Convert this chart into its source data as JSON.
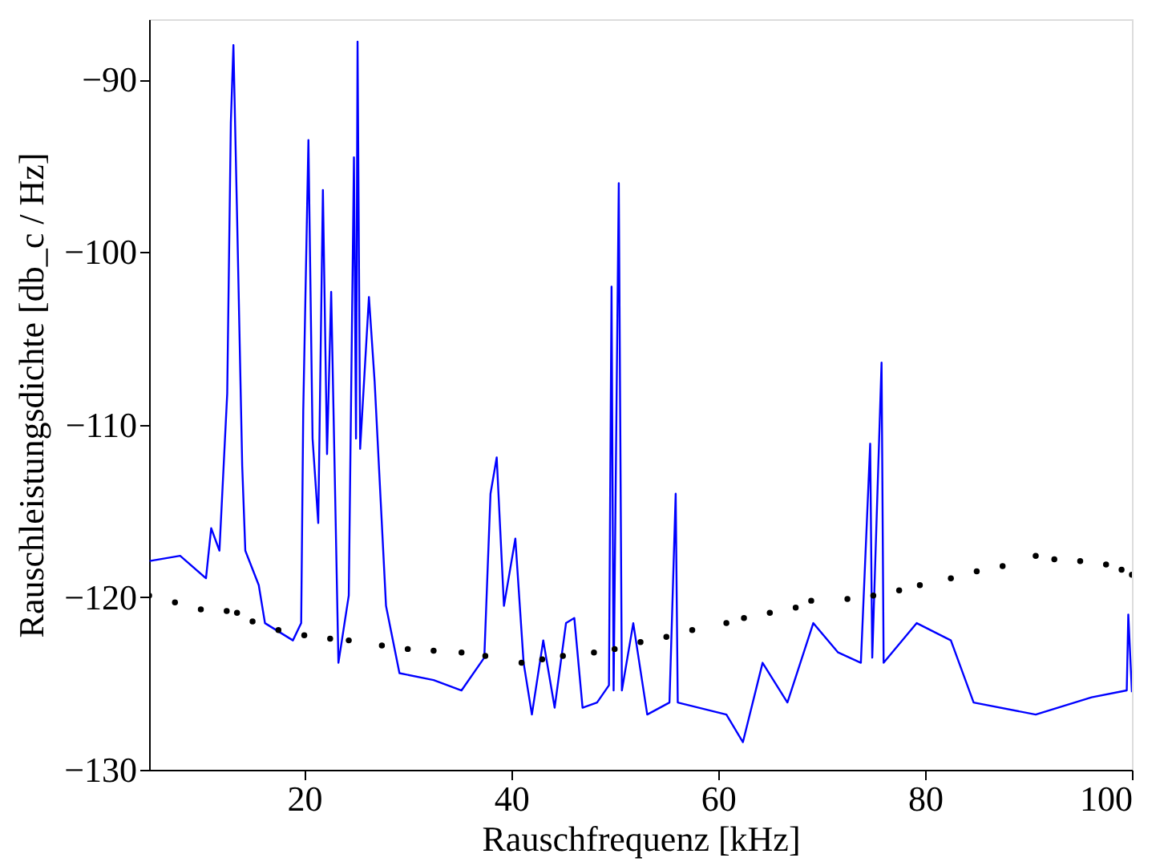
{
  "chart_data": {
    "type": "line",
    "xlabel": "Rauschfrequenz [kHz]",
    "ylabel": "Rauschleistungsdichte [db_c / Hz]",
    "xlim": [
      5,
      100
    ],
    "ylim": [
      -130,
      -86.5
    ],
    "xticks": [
      20,
      40,
      60,
      80,
      100
    ],
    "yticks": [
      {
        "value": -90,
        "label": "−90"
      },
      {
        "value": -100,
        "label": "−100"
      },
      {
        "value": -110,
        "label": "−110"
      },
      {
        "value": -120,
        "label": "−120"
      },
      {
        "value": -130,
        "label": "−130"
      }
    ],
    "grid": false,
    "line_style": "solid",
    "series": [
      {
        "type": "scatter",
        "marker": "circle",
        "color": "#000000",
        "x": [
          5,
          7.5,
          10,
          12.5,
          13.5,
          15,
          17.5,
          20,
          22.5,
          24.3,
          27.5,
          30,
          32.5,
          35.2,
          37.5,
          41,
          43,
          45,
          48,
          50,
          52.5,
          55,
          57.5,
          60.8,
          62.5,
          65,
          67.5,
          69,
          72.5,
          75,
          77.5,
          79.5,
          82.5,
          85,
          87.5,
          90.7,
          92.5,
          95,
          97.5,
          99,
          100
        ],
        "values": [
          -119.9,
          -120.3,
          -120.7,
          -120.8,
          -120.9,
          -121.4,
          -121.9,
          -122.2,
          -122.4,
          -122.5,
          -122.8,
          -123,
          -123.1,
          -123.2,
          -123.4,
          -123.8,
          -123.6,
          -123.4,
          -123.2,
          -123,
          -122.6,
          -122.3,
          -121.9,
          -121.5,
          -121.2,
          -120.9,
          -120.6,
          -120.2,
          -120.1,
          -119.9,
          -119.6,
          -119.3,
          -118.9,
          -118.5,
          -118.2,
          -117.6,
          -117.8,
          -117.9,
          -118.1,
          -118.4,
          -118.7
        ]
      },
      {
        "color": "#0000ff",
        "x": [
          5.05,
          8.0,
          10.5,
          11.0,
          11.8,
          12.55,
          12.9,
          13.15,
          13.5,
          14.0,
          14.3,
          15.6,
          16.2,
          18.9,
          19.7,
          19.9,
          20.4,
          20.8,
          21.35,
          21.8,
          22.2,
          22.6,
          23.3,
          24.3,
          24.8,
          25.0,
          25.15,
          25.4,
          26.25,
          26.8,
          27.9,
          29.2,
          32.5,
          35.2,
          37.4,
          38.0,
          38.6,
          39.3,
          40.4,
          41.2,
          42.0,
          43.1,
          44.2,
          45.3,
          46.1,
          46.9,
          48.3,
          49.45,
          49.7,
          49.9,
          50.4,
          50.7,
          51.8,
          53.15,
          55.3,
          55.9,
          56.1,
          60.8,
          62.4,
          64.3,
          66.7,
          69.2,
          71.6,
          73.8,
          74.7,
          74.9,
          75.8,
          76.0,
          79.2,
          82.5,
          84.7,
          90.7,
          96.1,
          99.5,
          99.65,
          100
        ],
        "values": [
          -117.9,
          -117.6,
          -118.9,
          -116.0,
          -117.3,
          -108.2,
          -92.5,
          -88.0,
          -97.8,
          -112.4,
          -117.3,
          -119.3,
          -121.5,
          -122.5,
          -121.5,
          -109.2,
          -93.5,
          -110.8,
          -115.7,
          -96.4,
          -111.7,
          -102.3,
          -123.8,
          -119.9,
          -94.5,
          -110.8,
          -87.8,
          -111.4,
          -102.6,
          -107.5,
          -120.5,
          -124.4,
          -124.8,
          -125.4,
          -123.5,
          -114.0,
          -111.9,
          -120.5,
          -116.6,
          -123.8,
          -126.8,
          -122.5,
          -126.4,
          -121.5,
          -121.2,
          -126.4,
          -126.1,
          -125.1,
          -102.0,
          -125.4,
          -96.0,
          -125.4,
          -121.5,
          -126.8,
          -126.1,
          -114.0,
          -126.1,
          -126.8,
          -128.4,
          -123.8,
          -126.1,
          -121.5,
          -123.2,
          -123.8,
          -111.1,
          -123.5,
          -106.4,
          -123.8,
          -121.5,
          -122.5,
          -126.1,
          -126.8,
          -125.8,
          -125.4,
          -121.0,
          -125.5
        ]
      }
    ]
  }
}
